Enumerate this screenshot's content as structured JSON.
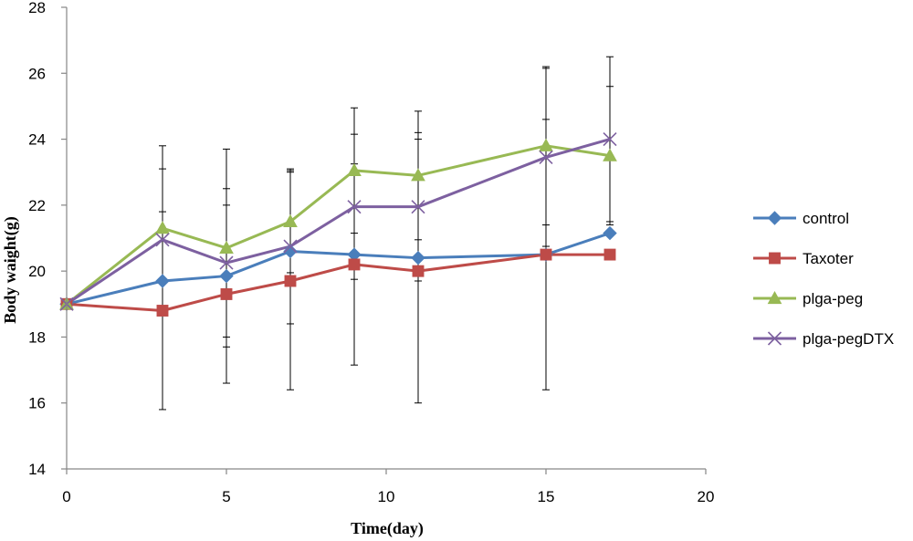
{
  "chart_data": {
    "type": "line",
    "title": "",
    "xlabel": "Time(day)",
    "ylabel": "Body  waight(g)",
    "xlim": [
      0,
      20
    ],
    "ylim": [
      14,
      28
    ],
    "xticks": [
      0,
      5,
      10,
      15,
      20
    ],
    "yticks": [
      14,
      16,
      18,
      20,
      22,
      24,
      26,
      28
    ],
    "grid": false,
    "legend_position": "right",
    "x": [
      0,
      3,
      5,
      7,
      9,
      11,
      15,
      17
    ],
    "series": [
      {
        "name": "control",
        "color": "#4a7ebb",
        "marker": "diamond",
        "values": [
          19.0,
          19.7,
          19.85,
          20.6,
          20.5,
          20.4,
          20.5,
          21.15
        ],
        "error": [
          0,
          0,
          0,
          0,
          0,
          0,
          0,
          0
        ]
      },
      {
        "name": "Taxoter",
        "color": "#be4b48",
        "marker": "square",
        "values": [
          19.0,
          18.8,
          19.3,
          19.7,
          20.2,
          20.0,
          20.5,
          20.5
        ],
        "error": [
          0,
          3.0,
          2.7,
          3.3,
          3.05,
          4.0,
          4.1,
          0
        ]
      },
      {
        "name": "plga-peg",
        "color": "#98b954",
        "marker": "triangle",
        "values": [
          19.0,
          21.3,
          20.7,
          21.5,
          23.05,
          22.9,
          23.8,
          23.5
        ],
        "error": [
          0,
          2.5,
          3.0,
          1.55,
          1.9,
          1.95,
          2.4,
          2.1
        ]
      },
      {
        "name": "plga-pegDTX",
        "color": "#7d60a0",
        "marker": "x",
        "values": [
          19.0,
          20.95,
          20.25,
          20.75,
          21.95,
          21.95,
          23.45,
          24.0
        ],
        "error": [
          0,
          2.15,
          2.25,
          2.35,
          2.2,
          2.25,
          2.7,
          2.5
        ]
      }
    ]
  }
}
